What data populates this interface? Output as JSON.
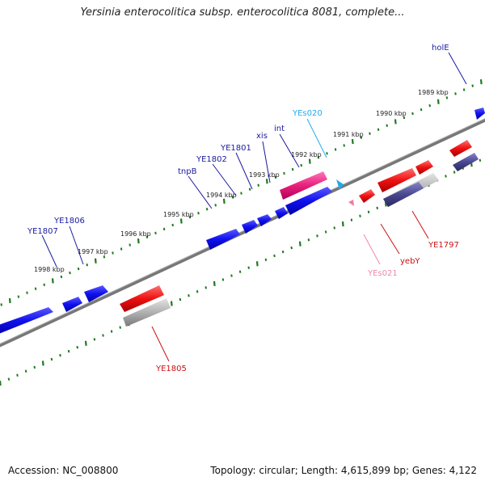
{
  "title": "Yersinia enterocolitica subsp. enterocolitica 8081, complete...",
  "footer": {
    "accession": "Accession: NC_008800",
    "summary": "Topology: circular; Length: 4,615,899 bp; Genes: 4,122"
  },
  "ticks": [
    {
      "label": "1989 kbp"
    },
    {
      "label": "1990 kbp"
    },
    {
      "label": "1991 kbp"
    },
    {
      "label": "1992 kbp"
    },
    {
      "label": "1993 kbp"
    },
    {
      "label": "1994 kbp"
    },
    {
      "label": "1995 kbp"
    },
    {
      "label": "1996 kbp"
    },
    {
      "label": "1997 kbp"
    },
    {
      "label": "1998 kbp"
    }
  ],
  "gene_labels": [
    {
      "name": "holE",
      "color": "#1a1aa0"
    },
    {
      "name": "YEs020",
      "color": "#22aaee"
    },
    {
      "name": "int",
      "color": "#1a1aa0"
    },
    {
      "name": "xis",
      "color": "#1a1aa0"
    },
    {
      "name": "YE1801",
      "color": "#1a1aa0"
    },
    {
      "name": "YE1802",
      "color": "#1a1aa0"
    },
    {
      "name": "tnpB",
      "color": "#1a1aa0"
    },
    {
      "name": "YE1806",
      "color": "#1a1aa0"
    },
    {
      "name": "YE1807",
      "color": "#1a1aa0"
    },
    {
      "name": "YEs021",
      "color": "#ee88aa"
    },
    {
      "name": "yebY",
      "color": "#cc1111"
    },
    {
      "name": "YE1797",
      "color": "#cc1111"
    },
    {
      "name": "YE1805",
      "color": "#cc1111"
    }
  ],
  "colors": {
    "forward_gene": "#0b0bd8",
    "reverse_gene": "#e01010",
    "forward_rna": "#e0207a",
    "reverse_rna": "#f07aa0",
    "gray_feature": "#a8a8a8",
    "purple_feature": "#4a4890",
    "backbone": "#777777",
    "tick": "#1f7a1f"
  }
}
